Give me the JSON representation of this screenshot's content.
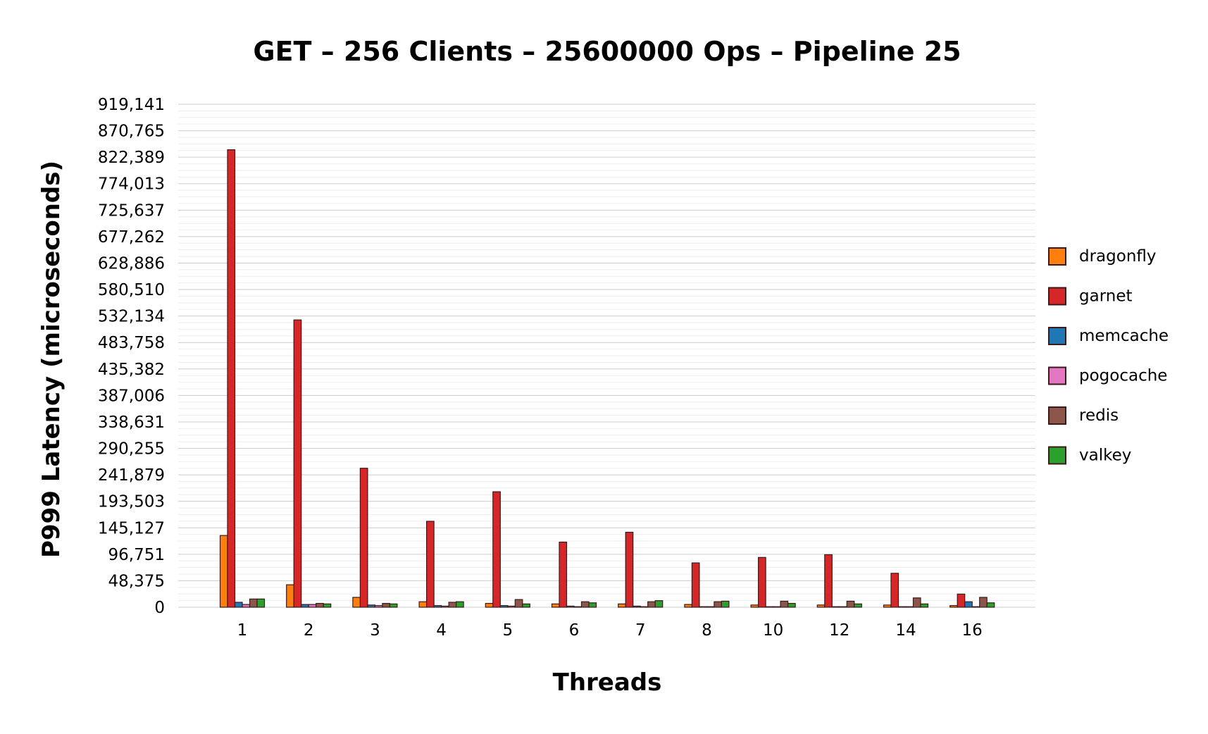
{
  "chart_data": {
    "type": "bar",
    "title": "GET – 256 Clients – 25600000 Ops – Pipeline 25",
    "xlabel": "Threads",
    "ylabel": "P999 Latency (microseconds)",
    "categories": [
      "1",
      "2",
      "3",
      "4",
      "5",
      "6",
      "7",
      "8",
      "10",
      "12",
      "14",
      "16"
    ],
    "ylim": [
      0,
      919141
    ],
    "yticks": [
      0,
      48375,
      96751,
      145127,
      193503,
      241879,
      290255,
      338631,
      387006,
      435382,
      483758,
      532134,
      580510,
      628886,
      677262,
      725637,
      774013,
      822389,
      870765,
      919141
    ],
    "ytick_labels": [
      "0",
      "48,375",
      "96,751",
      "145,127",
      "193,503",
      "241,879",
      "290,255",
      "338,631",
      "387,006",
      "435,382",
      "483,758",
      "532,134",
      "580,510",
      "628,886",
      "677,262",
      "725,637",
      "774,013",
      "822,389",
      "870,765",
      "919,141"
    ],
    "grid": true,
    "legend_position": "right",
    "series": [
      {
        "name": "dragonfly",
        "color": "#ff7f0e",
        "values": [
          131000,
          41000,
          18000,
          10000,
          7000,
          6000,
          6000,
          5000,
          4000,
          4000,
          4000,
          3000
        ]
      },
      {
        "name": "garnet",
        "color": "#d62728",
        "values": [
          836000,
          525000,
          254000,
          157000,
          211000,
          119000,
          137000,
          81000,
          91000,
          96000,
          62000,
          24000
        ]
      },
      {
        "name": "memcache",
        "color": "#1f77b4",
        "values": [
          9000,
          5000,
          4000,
          3000,
          3000,
          2000,
          2000,
          1000,
          1000,
          1000,
          1000,
          10000
        ]
      },
      {
        "name": "pogocache",
        "color": "#e377c2",
        "values": [
          5000,
          5000,
          3000,
          2000,
          2000,
          1000,
          1000,
          1000,
          1000,
          1000,
          1000,
          1000
        ]
      },
      {
        "name": "redis",
        "color": "#8c564b",
        "values": [
          15000,
          7000,
          7000,
          9000,
          14000,
          10000,
          10000,
          10000,
          11000,
          11000,
          17000,
          18000
        ]
      },
      {
        "name": "valkey",
        "color": "#2ca02c",
        "values": [
          15000,
          6000,
          6000,
          10000,
          6000,
          8000,
          12000,
          11000,
          7000,
          6000,
          6000,
          8000
        ]
      }
    ]
  }
}
